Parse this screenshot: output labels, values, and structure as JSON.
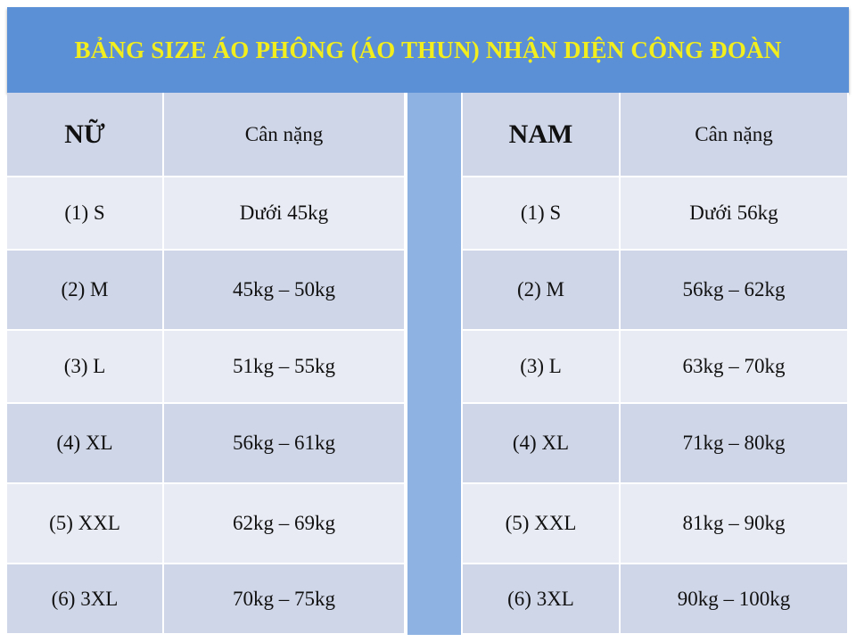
{
  "title": "BẢNG SIZE ÁO PHÔNG (ÁO THUN) NHẬN DIỆN CÔNG ĐOÀN",
  "colors": {
    "title_bg": "#5b8fd6",
    "title_text": "#f2ee1e",
    "divider": "#8eb2e2",
    "row_dark": "#cfd6e7",
    "row_light": "#e8ebf3"
  },
  "female": {
    "label": "NỮ",
    "weight_header": "Cân nặng",
    "rows": [
      {
        "size": "(1)  S",
        "weight": "Dưới 45kg"
      },
      {
        "size": "(2)  M",
        "weight": "45kg – 50kg"
      },
      {
        "size": "(3)  L",
        "weight": "51kg – 55kg"
      },
      {
        "size": "(4)  XL",
        "weight": "56kg – 61kg"
      },
      {
        "size": "(5) XXL",
        "weight": "62kg – 69kg"
      },
      {
        "size": "(6)  3XL",
        "weight": "70kg – 75kg"
      }
    ]
  },
  "male": {
    "label": "NAM",
    "weight_header": "Cân nặng",
    "rows": [
      {
        "size": "(1)  S",
        "weight": "Dưới 56kg"
      },
      {
        "size": "(2)  M",
        "weight": "56kg – 62kg"
      },
      {
        "size": "(3)  L",
        "weight": "63kg – 70kg"
      },
      {
        "size": "(4)  XL",
        "weight": "71kg – 80kg"
      },
      {
        "size": "(5)  XXL",
        "weight": "81kg – 90kg"
      },
      {
        "size": "(6) 3XL",
        "weight": "90kg – 100kg"
      }
    ]
  }
}
